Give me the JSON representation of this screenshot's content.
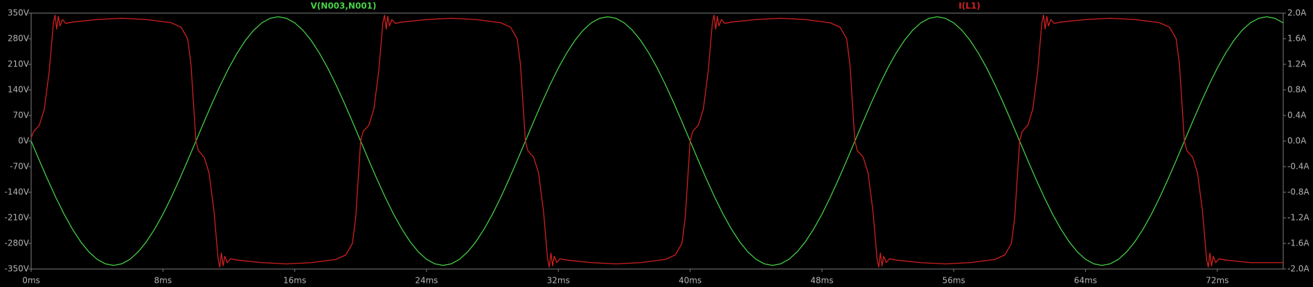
{
  "chart_data": {
    "type": "line",
    "xlim": [
      0,
      76
    ],
    "xticks": [
      {
        "value": 0,
        "label": "0ms"
      },
      {
        "value": 8,
        "label": "8ms"
      },
      {
        "value": 16,
        "label": "16ms"
      },
      {
        "value": 24,
        "label": "24ms"
      },
      {
        "value": 32,
        "label": "32ms"
      },
      {
        "value": 40,
        "label": "40ms"
      },
      {
        "value": 48,
        "label": "48ms"
      },
      {
        "value": 56,
        "label": "56ms"
      },
      {
        "value": 64,
        "label": "64ms"
      },
      {
        "value": 72,
        "label": "72ms"
      }
    ],
    "ylim": [
      -350,
      350
    ],
    "yticks": [
      {
        "value": 350,
        "label": "350V"
      },
      {
        "value": 280,
        "label": "280V"
      },
      {
        "value": 210,
        "label": "210V"
      },
      {
        "value": 140,
        "label": "140V"
      },
      {
        "value": 70,
        "label": "70V"
      },
      {
        "value": 0,
        "label": "0V"
      },
      {
        "value": -70,
        "label": "-70V"
      },
      {
        "value": -140,
        "label": "-140V"
      },
      {
        "value": -210,
        "label": "-210V"
      },
      {
        "value": -280,
        "label": "-280V"
      },
      {
        "value": -350,
        "label": "-350V"
      }
    ],
    "y2lim": [
      -2,
      2
    ],
    "y2ticks": [
      {
        "value": 2,
        "label": "2.0A"
      },
      {
        "value": 1.6,
        "label": "1.6A"
      },
      {
        "value": 1.2,
        "label": "1.2A"
      },
      {
        "value": 0.8,
        "label": "0.8A"
      },
      {
        "value": 0.4,
        "label": "0.4A"
      },
      {
        "value": 0,
        "label": "0.0A"
      },
      {
        "value": -0.4,
        "label": "-0.4A"
      },
      {
        "value": -0.8,
        "label": "-0.8A"
      },
      {
        "value": -1.2,
        "label": "-1.2A"
      },
      {
        "value": -1.6,
        "label": "-1.6A"
      },
      {
        "value": -2,
        "label": "-2.0A"
      }
    ],
    "series": [
      {
        "name": "V(N003,N001)",
        "color": "#46d246",
        "x": [
          0,
          0.5,
          1,
          1.5,
          2,
          2.5,
          3,
          3.5,
          4,
          4.5,
          5,
          5.5,
          6,
          6.5,
          7,
          7.5,
          8,
          8.5,
          9,
          9.5,
          10,
          10.5,
          11,
          11.5,
          12,
          12.5,
          13,
          13.5,
          14,
          14.5,
          15,
          15.5,
          16,
          16.5,
          17,
          17.5,
          18,
          18.5,
          19,
          19.5,
          20,
          20.5,
          21,
          21.5,
          22,
          22.5,
          23,
          23.5,
          24,
          24.5,
          25,
          25.5,
          26,
          26.5,
          27,
          27.5,
          28,
          28.5,
          29,
          29.5,
          30,
          30.5,
          31,
          31.5,
          32,
          32.5,
          33,
          33.5,
          34,
          34.5,
          35,
          35.5,
          36,
          36.5,
          37,
          37.5,
          38,
          38.5,
          39,
          39.5,
          40,
          40.5,
          41,
          41.5,
          42,
          42.5,
          43,
          43.5,
          44,
          44.5,
          45,
          45.5,
          46,
          46.5,
          47,
          47.5,
          48,
          48.5,
          49,
          49.5,
          50,
          50.5,
          51,
          51.5,
          52,
          52.5,
          53,
          53.5,
          54,
          54.5,
          55,
          55.5,
          56,
          56.5,
          57,
          57.5,
          58,
          58.5,
          59,
          59.5,
          60,
          60.5,
          61,
          61.5,
          62,
          62.5,
          63,
          63.5,
          64,
          64.5,
          65,
          65.5,
          66,
          66.5,
          67,
          67.5,
          68,
          68.5,
          69,
          69.5,
          70,
          70.5,
          71,
          71.5,
          72,
          72.5,
          73,
          73.5,
          74,
          74.5,
          75,
          75.5,
          76
        ],
        "values": [
          0,
          -53.2,
          -105.1,
          -154.4,
          -199.9,
          -240.4,
          -275.1,
          -302.9,
          -323.4,
          -335.8,
          -340,
          -335.8,
          -323.4,
          -302.9,
          -275.1,
          -240.4,
          -199.9,
          -154.4,
          -105.1,
          -53.2,
          0,
          53.2,
          105.1,
          154.4,
          199.9,
          240.4,
          275.1,
          302.9,
          323.4,
          335.8,
          340,
          335.8,
          323.4,
          302.9,
          275.1,
          240.4,
          199.9,
          154.4,
          105.1,
          53.2,
          0,
          -53.2,
          -105.1,
          -154.4,
          -199.9,
          -240.4,
          -275.1,
          -302.9,
          -323.4,
          -335.8,
          -340,
          -335.8,
          -323.4,
          -302.9,
          -275.1,
          -240.4,
          -199.9,
          -154.4,
          -105.1,
          -53.2,
          0,
          53.2,
          105.1,
          154.4,
          199.9,
          240.4,
          275.1,
          302.9,
          323.4,
          335.8,
          340,
          335.8,
          323.4,
          302.9,
          275.1,
          240.4,
          199.9,
          154.4,
          105.1,
          53.2,
          0,
          -53.2,
          -105.1,
          -154.4,
          -199.9,
          -240.4,
          -275.1,
          -302.9,
          -323.4,
          -335.8,
          -340,
          -335.8,
          -323.4,
          -302.9,
          -275.1,
          -240.4,
          -199.9,
          -154.4,
          -105.1,
          -53.2,
          0,
          53.2,
          105.1,
          154.4,
          199.9,
          240.4,
          275.1,
          302.9,
          323.4,
          335.8,
          340,
          335.8,
          323.4,
          302.9,
          275.1,
          240.4,
          199.9,
          154.4,
          105.1,
          53.2,
          0,
          -53.2,
          -105.1,
          -154.4,
          -199.9,
          -240.4,
          -275.1,
          -302.9,
          -323.4,
          -335.8,
          -340,
          -335.8,
          -323.4,
          -302.9,
          -275.1,
          -240.4,
          -199.9,
          -154.4,
          -105.1,
          -53.2,
          0,
          53.2,
          105.1,
          154.4,
          199.9,
          240.4,
          275.1,
          302.9,
          323.4,
          335.8,
          340,
          335.8,
          323.4
        ]
      },
      {
        "name": "I(L1)",
        "color": "#d42020",
        "axis": "y2",
        "x": [
          0,
          0.15,
          0.5,
          0.8,
          1.1,
          1.35,
          1.45,
          1.55,
          1.65,
          1.75,
          1.9,
          2.1,
          2.5,
          4,
          5.5,
          7,
          8.5,
          9.1,
          9.5,
          9.7,
          9.9,
          10,
          10.15,
          10.5,
          10.8,
          11.1,
          11.35,
          11.45,
          11.55,
          11.65,
          11.75,
          11.9,
          12.1,
          12.5,
          14,
          15.5,
          17,
          18.5,
          19.1,
          19.5,
          19.7,
          19.9,
          20,
          20.15,
          20.5,
          20.8,
          21.1,
          21.35,
          21.45,
          21.55,
          21.65,
          21.75,
          21.9,
          22.1,
          22.5,
          24,
          25.5,
          27,
          28.5,
          29.1,
          29.5,
          29.7,
          29.9,
          30,
          30.15,
          30.5,
          30.8,
          31.1,
          31.35,
          31.45,
          31.55,
          31.65,
          31.75,
          31.9,
          32.1,
          32.5,
          34,
          35.5,
          37,
          38.5,
          39.1,
          39.5,
          39.7,
          39.9,
          40,
          40.15,
          40.5,
          40.8,
          41.1,
          41.35,
          41.45,
          41.55,
          41.65,
          41.75,
          41.9,
          42.1,
          42.5,
          44,
          45.5,
          47,
          48.5,
          49.1,
          49.5,
          49.7,
          49.9,
          50,
          50.15,
          50.5,
          50.8,
          51.1,
          51.35,
          51.45,
          51.55,
          51.65,
          51.75,
          51.9,
          52.1,
          52.5,
          54,
          55.5,
          57,
          58.5,
          59.1,
          59.5,
          59.7,
          59.9,
          60,
          60.15,
          60.5,
          60.8,
          61.1,
          61.35,
          61.45,
          61.55,
          61.65,
          61.75,
          61.9,
          62.1,
          62.5,
          64,
          65.5,
          67,
          68.5,
          69.1,
          69.5,
          69.7,
          69.9,
          70,
          70.15,
          70.5,
          70.8,
          71.1,
          71.35,
          71.45,
          71.55,
          71.65,
          71.75,
          71.9,
          72.1,
          72.5,
          74,
          76
        ],
        "values": [
          0.05,
          0.15,
          0.25,
          0.5,
          1.1,
          1.85,
          1.97,
          1.75,
          1.95,
          1.8,
          1.9,
          1.84,
          1.86,
          1.9,
          1.92,
          1.9,
          1.85,
          1.78,
          1.6,
          1.2,
          0.4,
          0,
          -0.15,
          -0.25,
          -0.5,
          -1.1,
          -1.85,
          -1.97,
          -1.75,
          -1.95,
          -1.8,
          -1.9,
          -1.84,
          -1.86,
          -1.9,
          -1.92,
          -1.9,
          -1.85,
          -1.78,
          -1.6,
          -1.2,
          -0.4,
          0,
          0.15,
          0.25,
          0.5,
          1.1,
          1.85,
          1.97,
          1.75,
          1.95,
          1.8,
          1.9,
          1.84,
          1.86,
          1.9,
          1.92,
          1.9,
          1.85,
          1.78,
          1.6,
          1.2,
          0.4,
          0,
          -0.15,
          -0.25,
          -0.5,
          -1.1,
          -1.85,
          -1.97,
          -1.75,
          -1.95,
          -1.8,
          -1.9,
          -1.84,
          -1.86,
          -1.9,
          -1.92,
          -1.9,
          -1.85,
          -1.78,
          -1.6,
          -1.2,
          -0.4,
          0,
          0.15,
          0.25,
          0.5,
          1.1,
          1.85,
          1.97,
          1.75,
          1.95,
          1.8,
          1.9,
          1.84,
          1.86,
          1.9,
          1.92,
          1.9,
          1.85,
          1.78,
          1.6,
          1.2,
          0.4,
          0,
          -0.15,
          -0.25,
          -0.5,
          -1.1,
          -1.85,
          -1.97,
          -1.75,
          -1.95,
          -1.8,
          -1.9,
          -1.84,
          -1.86,
          -1.9,
          -1.92,
          -1.9,
          -1.85,
          -1.78,
          -1.6,
          -1.2,
          -0.4,
          0,
          0.15,
          0.25,
          0.5,
          1.1,
          1.85,
          1.97,
          1.75,
          1.95,
          1.8,
          1.9,
          1.84,
          1.86,
          1.9,
          1.92,
          1.9,
          1.85,
          1.78,
          1.6,
          1.2,
          0.4,
          0,
          -0.15,
          -0.25,
          -0.5,
          -1.1,
          -1.85,
          -1.97,
          -1.75,
          -1.95,
          -1.8,
          -1.9,
          -1.84,
          -1.86,
          -1.9,
          -1.9
        ]
      }
    ]
  }
}
